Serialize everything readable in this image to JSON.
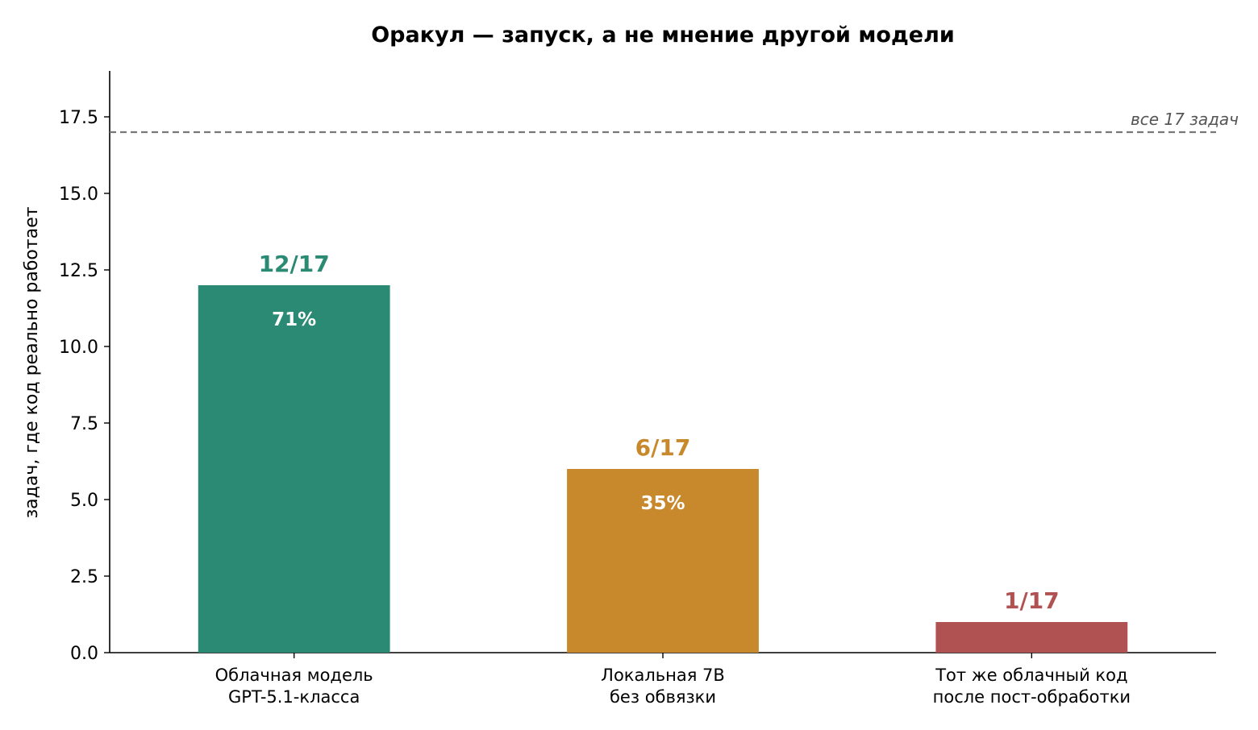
{
  "chart_data": {
    "type": "bar",
    "title": "Оракул — запуск, а не мнение другой модели",
    "ylabel": "задач, где код реально работает",
    "xlabel": "",
    "ylim": [
      0,
      19
    ],
    "yticks": [
      "0.0",
      "2.5",
      "5.0",
      "7.5",
      "10.0",
      "12.5",
      "15.0",
      "17.5"
    ],
    "categories": [
      [
        "Облачная модель",
        "GPT-5.1-класса"
      ],
      [
        "Локальная 7B",
        "без обвязки"
      ],
      [
        "Тот же облачный код",
        "после пост-обработки"
      ]
    ],
    "values": [
      12,
      6,
      1
    ],
    "value_labels": [
      "12/17",
      "6/17",
      "1/17"
    ],
    "percent_labels": [
      "71%",
      "35%",
      ""
    ],
    "colors": [
      "#2b8a73",
      "#c8892c",
      "#b05252"
    ],
    "reference_line": {
      "value": 17,
      "label": "все 17 задач",
      "color": "#777777"
    },
    "grid": false,
    "legend": "none"
  }
}
